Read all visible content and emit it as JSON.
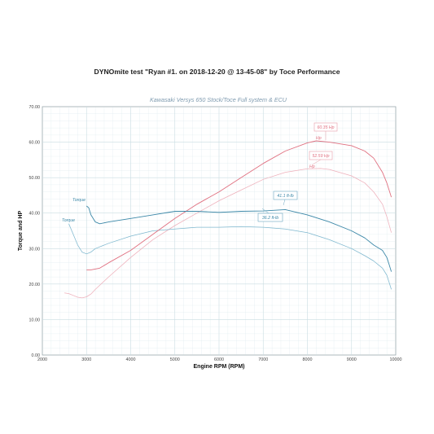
{
  "title": "DYNOmite test \"Ryan #1. on 2018-12-20 @ 13-45-08\" by Toce Performance",
  "chart_data": {
    "type": "line",
    "subtitle": "Kawasaki Versys 650 Stock/Toce Full system & ECU",
    "xlabel": "Engine RPM (RPM)",
    "ylabel": "Torque and HP",
    "xlim": [
      2000,
      10000
    ],
    "ylim": [
      0,
      70
    ],
    "xticks": [
      "2000",
      "3000",
      "4000",
      "5000",
      "6000",
      "7000",
      "8000",
      "9000",
      "10000"
    ],
    "yticks": [
      "0.00",
      "10.00",
      "20.00",
      "30.00",
      "40.00",
      "50.00",
      "60.00",
      "70.00"
    ],
    "grid": true,
    "colors": {
      "torque_modified": "#3c88a8",
      "torque_stock": "#7fb8cf",
      "hp_modified": "#e07080",
      "hp_stock": "#eeb0bb",
      "grid": "#c9dde2"
    },
    "series": [
      {
        "name": "Torque",
        "variant": "modified",
        "peak_label": "41.1 ft-lb",
        "x": [
          3000,
          3050,
          3100,
          3200,
          3300,
          3500,
          4000,
          4500,
          5000,
          5500,
          6000,
          6500,
          7000,
          7500,
          8000,
          8500,
          9000,
          9300,
          9500,
          9700,
          9800,
          9850,
          9900
        ],
        "y": [
          42,
          41.5,
          39.5,
          37.5,
          37,
          37.5,
          38.5,
          39.5,
          40.5,
          40.5,
          40.2,
          40.5,
          40.6,
          41,
          39.5,
          37.5,
          35,
          33,
          31,
          29.5,
          27.5,
          25.5,
          23.5
        ]
      },
      {
        "name": "Torque",
        "variant": "stock",
        "peak_label": "36.2 ft-lb",
        "x": [
          2600,
          2700,
          2800,
          2900,
          3000,
          3100,
          3200,
          3500,
          4000,
          4500,
          5000,
          5500,
          6000,
          6500,
          7000,
          7500,
          8000,
          8500,
          9000,
          9300,
          9500,
          9700,
          9800,
          9900
        ],
        "y": [
          37,
          34,
          31,
          29,
          28.5,
          29,
          30,
          31.5,
          33.5,
          35,
          35.5,
          36,
          36,
          36.2,
          36,
          35.5,
          34.5,
          32.5,
          30,
          28,
          26.5,
          24.5,
          22.5,
          18.5
        ]
      },
      {
        "name": "Hp",
        "variant": "modified",
        "peak_label": "60.35 Hp",
        "x": [
          3000,
          3100,
          3300,
          3500,
          4000,
          4500,
          5000,
          5500,
          6000,
          6500,
          7000,
          7500,
          8000,
          8200,
          8500,
          9000,
          9300,
          9500,
          9700,
          9800,
          9900
        ],
        "y": [
          24,
          24,
          24.5,
          26,
          29.5,
          34,
          38.5,
          42.5,
          46,
          50,
          54,
          57.5,
          59.8,
          60.35,
          60,
          59,
          57.5,
          55.5,
          51.5,
          48.5,
          44.5
        ]
      },
      {
        "name": "Hp",
        "variant": "stock",
        "peak_label": "52.59 Hp",
        "x": [
          2500,
          2600,
          2700,
          2800,
          2900,
          3000,
          3100,
          3200,
          3500,
          4000,
          4500,
          5000,
          5500,
          6000,
          6500,
          7000,
          7500,
          8000,
          8300,
          8500,
          9000,
          9300,
          9500,
          9700,
          9800,
          9900
        ],
        "y": [
          17.5,
          17.3,
          16.8,
          16.3,
          16.1,
          16.4,
          17.2,
          18.5,
          22,
          27.5,
          32.5,
          36.5,
          40,
          43.5,
          46.5,
          49.5,
          51.5,
          52.5,
          52.59,
          52.3,
          50.5,
          48.5,
          46,
          42.5,
          39,
          34.5
        ]
      }
    ]
  }
}
